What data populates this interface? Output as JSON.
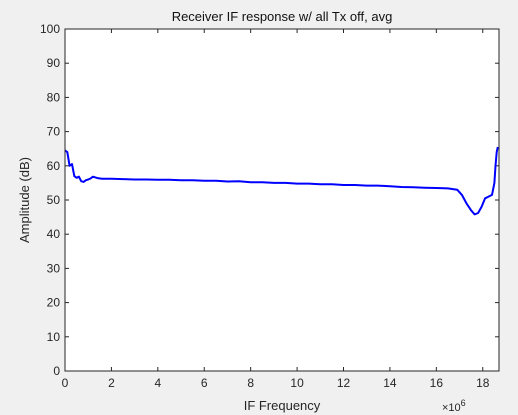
{
  "figure": {
    "background": "#f0f0f0"
  },
  "chart_data": {
    "type": "line",
    "title": "Receiver IF response w/ all Tx off, avg",
    "xlabel": "IF Frequency",
    "ylabel": "Amplitude (dB)",
    "x_exponent_label": "×10",
    "x_exponent_power": "6",
    "xlim": [
      0,
      18.7
    ],
    "ylim": [
      0,
      100
    ],
    "xticks": [
      "0",
      "2",
      "4",
      "6",
      "8",
      "10",
      "12",
      "14",
      "16",
      "18"
    ],
    "yticks": [
      "0",
      "10",
      "20",
      "30",
      "40",
      "50",
      "60",
      "70",
      "80",
      "90",
      "100"
    ],
    "grid": false,
    "line_color": "#0000ff",
    "series": [
      {
        "x": [
          0,
          0.1,
          0.2,
          0.3,
          0.4,
          0.5,
          0.6,
          0.7,
          0.8,
          0.9,
          1.0,
          1.1,
          1.2,
          1.4,
          1.6,
          2.0,
          2.5,
          3.0,
          3.5,
          4.0,
          4.5,
          5.0,
          5.5,
          6.0,
          6.5,
          7.0,
          7.5,
          8.0,
          8.5,
          9.0,
          9.5,
          10.0,
          10.5,
          11.0,
          11.5,
          12.0,
          12.5,
          13.0,
          13.5,
          14.0,
          14.5,
          15.0,
          15.5,
          16.0,
          16.5,
          16.9,
          17.1,
          17.3,
          17.5,
          17.65,
          17.8,
          17.95,
          18.1,
          18.25,
          18.4,
          18.5,
          18.55,
          18.6,
          18.65
        ],
        "y": [
          64.5,
          64,
          60,
          60.5,
          57,
          56.5,
          56.8,
          55.5,
          55.3,
          55.8,
          56,
          56.3,
          56.8,
          56.4,
          56.2,
          56.2,
          56.1,
          56.0,
          56.0,
          55.9,
          55.9,
          55.8,
          55.8,
          55.6,
          55.6,
          55.4,
          55.5,
          55.2,
          55.2,
          55.0,
          55.0,
          54.8,
          54.8,
          54.6,
          54.6,
          54.4,
          54.4,
          54.2,
          54.2,
          54.0,
          53.8,
          53.7,
          53.6,
          53.5,
          53.4,
          53.0,
          51.5,
          49,
          47,
          45.8,
          46.2,
          48,
          50.5,
          51,
          51.5,
          55,
          60,
          64,
          65.5
        ]
      }
    ]
  }
}
